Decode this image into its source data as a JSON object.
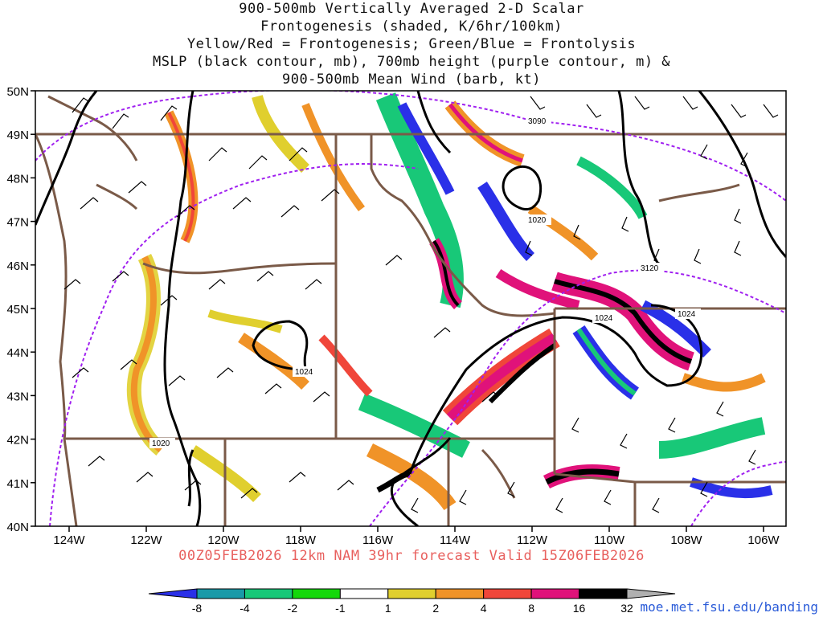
{
  "title_lines": [
    "900-500mb Vertically Averaged 2-D Scalar",
    "Frontogenesis (shaded, K/6hr/100km)",
    "Yellow/Red = Frontogenesis;  Green/Blue = Frontolysis",
    "MSLP (black contour, mb), 700mb height (purple contour, m) &",
    "900-500mb Mean Wind (barb, kt)"
  ],
  "map": {
    "lat_labels": [
      "50N",
      "49N",
      "48N",
      "47N",
      "46N",
      "45N",
      "44N",
      "43N",
      "42N",
      "41N",
      "40N"
    ],
    "lon_labels": [
      "124W",
      "122W",
      "120W",
      "118W",
      "116W",
      "114W",
      "112W",
      "110W",
      "108W",
      "106W"
    ],
    "contour_labels": {
      "h3090": "3090",
      "h3120": "3120",
      "p1020a": "1020",
      "p1020b": "1020",
      "p1024a": "1024",
      "p1024b": "1024",
      "p1024c": "1024"
    },
    "colors": {
      "mslp": "#000000",
      "height700": "#a020f0",
      "borders": "#7a5a48"
    }
  },
  "footer": "00Z05FEB2026 12km NAM 39hr forecast Valid 15Z06FEB2026",
  "colorbar": {
    "labels": [
      "-8",
      "-4",
      "-2",
      "-1",
      "1",
      "2",
      "4",
      "8",
      "16",
      "32"
    ],
    "colors": [
      "#2a30e8",
      "#1a9aa8",
      "#18c878",
      "#14d80a",
      "#ffffff",
      "#e0cf2e",
      "#f09328",
      "#f0463a",
      "#e0127a",
      "#000000",
      "#b0b0b0"
    ]
  },
  "credit": "moe.met.fsu.edu/banding"
}
